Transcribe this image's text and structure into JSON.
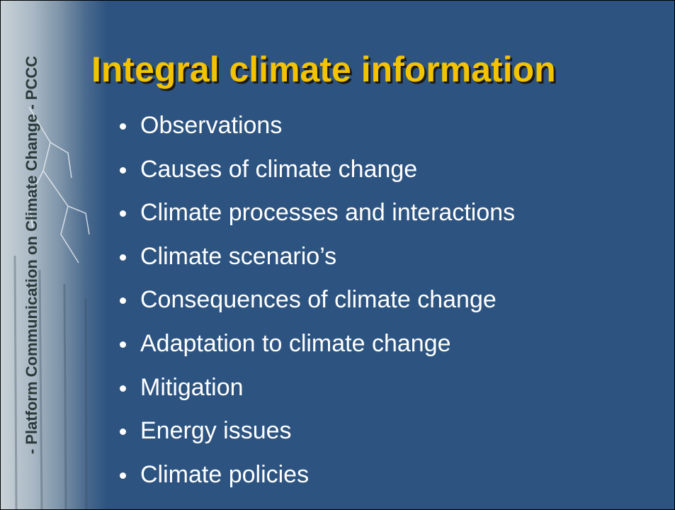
{
  "sidebar": {
    "text": "- Platform Communication on Climate Change - PCCC"
  },
  "title": "Integral climate information",
  "bullets": [
    "Observations",
    "Causes of climate change",
    "Climate processes and interactions",
    "Climate scenario’s",
    "Consequences of climate change",
    "Adaptation to climate change",
    "Mitigation",
    "Energy issues",
    "Climate policies"
  ]
}
